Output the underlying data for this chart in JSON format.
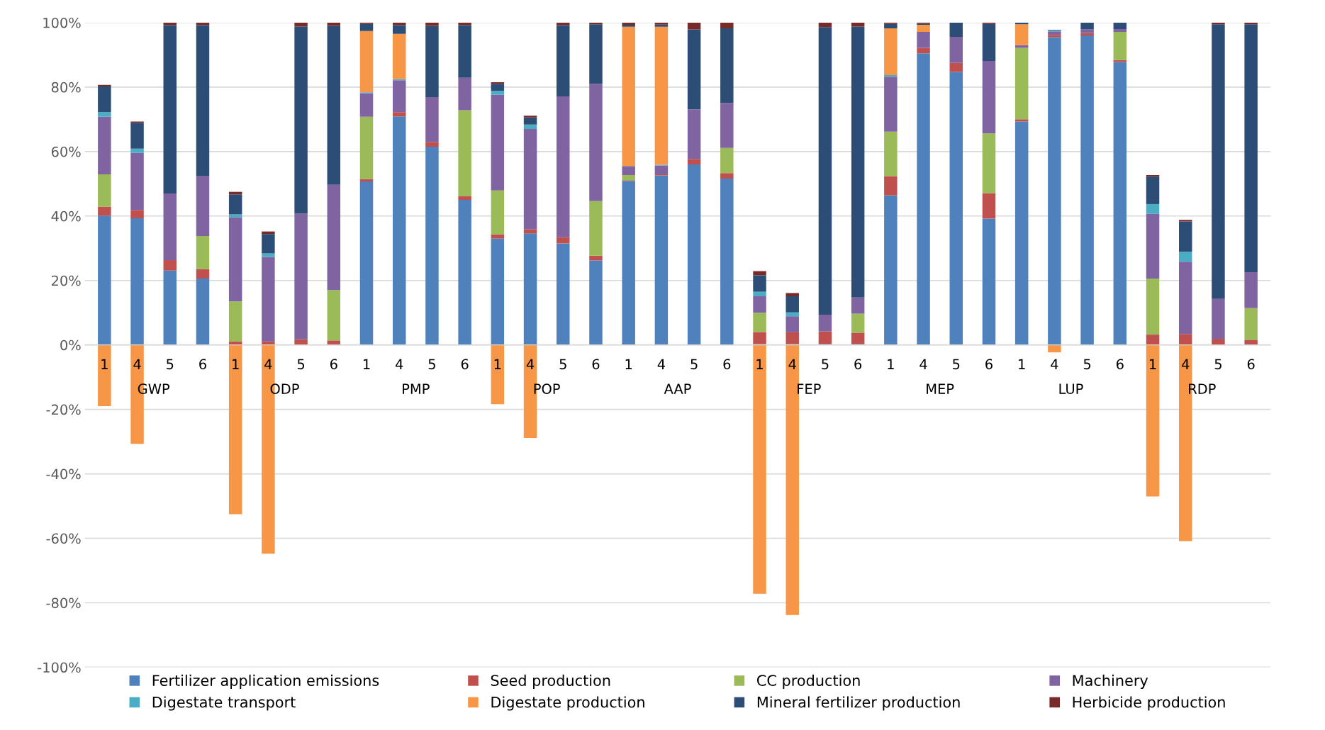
{
  "chart_data": {
    "type": "bar",
    "stacked": true,
    "categories": [
      "1",
      "4",
      "5",
      "6",
      "1",
      "4",
      "5",
      "6",
      "1",
      "4",
      "5",
      "6",
      "1",
      "4",
      "5",
      "6",
      "1",
      "4",
      "5",
      "6",
      "1",
      "4",
      "5",
      "6",
      "1",
      "4",
      "5",
      "6",
      "1",
      "4",
      "5",
      "6",
      "1",
      "4",
      "5",
      "6"
    ],
    "annotations": [
      "GWP",
      "ODP",
      "PMP",
      "POP",
      "AAP",
      "FEP",
      "MEP",
      "LUP",
      "RDP"
    ],
    "series": [
      {
        "name": "Fertilizer application emissions",
        "color": "#4f81bd",
        "values": [
          40.1,
          39.3,
          23.1,
          20.6,
          0,
          0,
          0,
          0,
          50.7,
          70.9,
          61.5,
          45,
          33,
          34.6,
          31.5,
          26.2,
          50.9,
          52.6,
          56,
          51.6,
          0.3,
          0.3,
          0.3,
          0.3,
          46.4,
          90.5,
          84.7,
          39.2,
          69.3,
          95.5,
          96,
          87.8,
          0,
          0,
          0,
          0
        ]
      },
      {
        "name": "Seed production",
        "color": "#c0504d",
        "values": [
          2.8,
          2.6,
          3.2,
          2.9,
          1.1,
          1.1,
          1.8,
          1.4,
          0.8,
          1.3,
          1.5,
          1.1,
          1.3,
          1.3,
          1.9,
          1.5,
          0.2,
          0.3,
          1.7,
          1.7,
          3.7,
          3.6,
          3.9,
          3.5,
          6,
          1.7,
          2.8,
          7.9,
          0.7,
          0.7,
          0.8,
          0.6,
          3.2,
          3.4,
          1.9,
          1.6
        ]
      },
      {
        "name": "CC production",
        "color": "#9bbb59",
        "values": [
          10,
          0,
          0,
          10.3,
          12.4,
          0,
          0,
          15.6,
          19.3,
          0,
          0,
          26.7,
          13.6,
          0,
          0,
          16.9,
          1.6,
          0,
          0,
          7.8,
          6,
          0,
          0,
          5.9,
          13.8,
          0,
          0,
          18.5,
          22.2,
          0,
          0,
          8.7,
          17.4,
          0,
          0,
          9.8
        ]
      },
      {
        "name": "Machinery",
        "color": "#8064a2",
        "values": [
          17.9,
          17.7,
          20.7,
          18.7,
          26.1,
          26.2,
          38.9,
          32.7,
          7.3,
          9.9,
          13.9,
          10.1,
          29.7,
          31.1,
          43.7,
          36.4,
          2.8,
          2.8,
          15.4,
          14,
          5.1,
          5,
          5.2,
          5,
          17,
          4.9,
          8.1,
          22.5,
          0.8,
          1.1,
          1.1,
          0.9,
          20.1,
          22.4,
          12.4,
          11.2
        ]
      },
      {
        "name": "Digestate transport",
        "color": "#4bacc6",
        "values": [
          1.4,
          1.3,
          0,
          0,
          0.9,
          1.1,
          0,
          0,
          0.3,
          0.4,
          0,
          0,
          1.2,
          1.4,
          0,
          0,
          0,
          0.2,
          0,
          0,
          1.4,
          1.2,
          0,
          0,
          0.5,
          0,
          0,
          0,
          0,
          0.3,
          0,
          0,
          3,
          3.1,
          0,
          0
        ]
      },
      {
        "name": "Digestate production",
        "color": "#f79646",
        "values": [
          -19,
          -30.7,
          0,
          0,
          -52.5,
          -64.8,
          0,
          0,
          19,
          14,
          0,
          0,
          -18.4,
          -28.9,
          0,
          0,
          43.2,
          42.8,
          0,
          0,
          -77.2,
          -83.8,
          0,
          0,
          14.5,
          2.2,
          0,
          0,
          6.5,
          -2.3,
          0,
          0,
          -47,
          -60.9,
          0,
          0
        ]
      },
      {
        "name": "Mineral fertilizer production",
        "color": "#2c4d75",
        "values": [
          8,
          8,
          52.2,
          46.7,
          6.2,
          6,
          58.1,
          49.3,
          2.2,
          2.7,
          22.1,
          16.3,
          2.2,
          2.2,
          22.1,
          18.5,
          0.6,
          0.7,
          24.8,
          23.1,
          5.1,
          5,
          89.2,
          84.1,
          1.4,
          0.4,
          4.4,
          11.5,
          0.5,
          0.2,
          2.1,
          2,
          8.5,
          9.4,
          85.2,
          76.9
        ]
      },
      {
        "name": "Herbicide production",
        "color": "#772c2a",
        "values": [
          0.5,
          0.4,
          0.8,
          0.8,
          0.8,
          0.8,
          1.2,
          1,
          0.4,
          0.8,
          1,
          0.8,
          0.5,
          0.5,
          0.8,
          0.5,
          0.7,
          0.6,
          2.1,
          1.8,
          1.3,
          1,
          1.4,
          1.2,
          0.4,
          0.3,
          0,
          0.4,
          0,
          0,
          0,
          0,
          0.5,
          0.5,
          0.5,
          0.5
        ]
      }
    ],
    "ylim": [
      -100,
      100
    ],
    "yticks": [
      {
        "value": -100,
        "label": "-100%"
      },
      {
        "value": -80,
        "label": "-80%"
      },
      {
        "value": -60,
        "label": "-60%"
      },
      {
        "value": -40,
        "label": "-40%"
      },
      {
        "value": -20,
        "label": "-20%"
      },
      {
        "value": 0,
        "label": "0%"
      },
      {
        "value": 20,
        "label": "20%"
      },
      {
        "value": 40,
        "label": "40%"
      },
      {
        "value": 60,
        "label": "60%"
      },
      {
        "value": 80,
        "label": "80%"
      },
      {
        "value": 100,
        "label": "100%"
      }
    ],
    "grid": "y",
    "legend": "bottom"
  }
}
